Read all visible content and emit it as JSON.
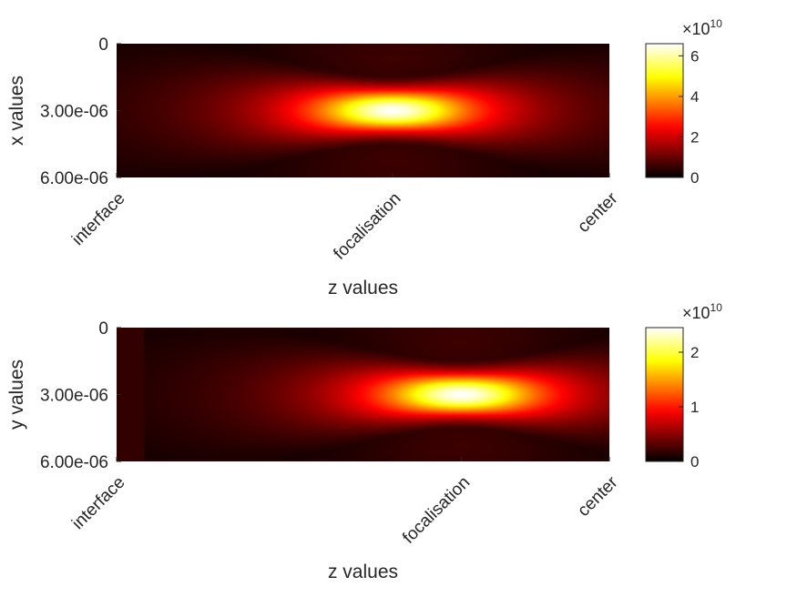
{
  "figure": {
    "colormap": "hot",
    "background": "#ffffff"
  },
  "chart_data": [
    {
      "type": "heatmap",
      "title": "",
      "xlabel": "z values",
      "ylabel": "x values",
      "x_tick_labels": [
        "interface",
        "focalisation",
        "center"
      ],
      "x_tick_positions": [
        0,
        0.56,
        1
      ],
      "y_tick_labels": [
        "0",
        "3.00e-06",
        "6.00e-06"
      ],
      "y_tick_values": [
        0,
        3e-06,
        6e-06
      ],
      "ylim": [
        0,
        6e-06
      ],
      "y_reversed": true,
      "focus_x": 0.56,
      "focus_y": 3e-06,
      "interface_band": false,
      "colorbar": {
        "min": 0,
        "max": 6.6,
        "ticks": [
          0,
          2,
          4,
          6
        ],
        "tick_labels": [
          "0",
          "2",
          "4",
          "6"
        ],
        "exponent_label": "×10",
        "exponent": "10"
      },
      "peak_value": 66000000000.0
    },
    {
      "type": "heatmap",
      "title": "",
      "xlabel": "z values",
      "ylabel": "y values",
      "x_tick_labels": [
        "interface",
        "focalisation",
        "center"
      ],
      "x_tick_positions": [
        0,
        0.7,
        1
      ],
      "y_tick_labels": [
        "0",
        "3.00e-06",
        "6.00e-06"
      ],
      "y_tick_values": [
        0,
        3e-06,
        6e-06
      ],
      "ylim": [
        0,
        6e-06
      ],
      "y_reversed": true,
      "focus_x": 0.7,
      "focus_y": 3e-06,
      "interface_band": true,
      "colorbar": {
        "min": 0,
        "max": 2.45,
        "ticks": [
          0,
          1,
          2
        ],
        "tick_labels": [
          "0",
          "1",
          "2"
        ],
        "exponent_label": "×10",
        "exponent": "10"
      },
      "peak_value": 24500000000.0
    }
  ]
}
